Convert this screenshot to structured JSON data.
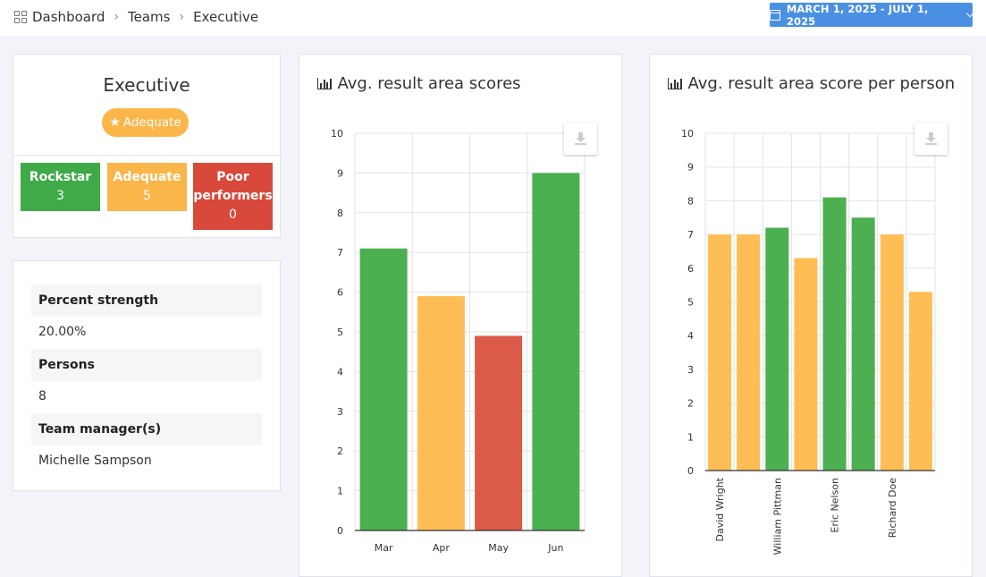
{
  "breadcrumb": {
    "items": [
      "Dashboard",
      "Teams",
      "Executive"
    ]
  },
  "date_range": {
    "label": "MARCH 1, 2025 - JULY 1, 2025"
  },
  "team": {
    "title": "Executive",
    "badge": "Adequate",
    "tiles": [
      {
        "label": "Rockstar",
        "count": "3"
      },
      {
        "label": "Adequate",
        "count": "5"
      },
      {
        "label": "Poor performers",
        "count": "0"
      }
    ]
  },
  "info": {
    "percent_strength_label": "Percent strength",
    "percent_strength_value": "20.00%",
    "persons_label": "Persons",
    "persons_value": "8",
    "managers_label": "Team manager(s)",
    "managers_value": "Michelle Sampson"
  },
  "colors": {
    "green": "#4caf50",
    "yellow": "#ffbd55",
    "red": "#dc5a48",
    "accent": "#4a90e2"
  },
  "chart_data": [
    {
      "type": "bar",
      "title": "Avg. result area scores",
      "categories": [
        "Mar",
        "Apr",
        "May",
        "Jun"
      ],
      "values": [
        7.1,
        5.9,
        4.9,
        9.0
      ],
      "bar_colors": [
        "green",
        "yellow",
        "red",
        "green"
      ],
      "ylim": [
        0,
        10
      ],
      "yticks": [
        0,
        1,
        2,
        3,
        4,
        5,
        6,
        7,
        8,
        9,
        10
      ],
      "grid": true
    },
    {
      "type": "bar",
      "title": "Avg. result area score per person",
      "categories": [
        "David Wright",
        "",
        "William Pittman",
        "",
        "Eric Nelson",
        "",
        "Richard Doe",
        ""
      ],
      "values": [
        7.0,
        7.0,
        7.2,
        6.3,
        8.1,
        7.5,
        7.0,
        5.3
      ],
      "bar_colors": [
        "yellow",
        "yellow",
        "green",
        "yellow",
        "green",
        "green",
        "yellow",
        "yellow"
      ],
      "ylim": [
        0,
        10
      ],
      "yticks": [
        0,
        1,
        2,
        3,
        4,
        5,
        6,
        7,
        8,
        9,
        10
      ],
      "grid": true
    }
  ]
}
